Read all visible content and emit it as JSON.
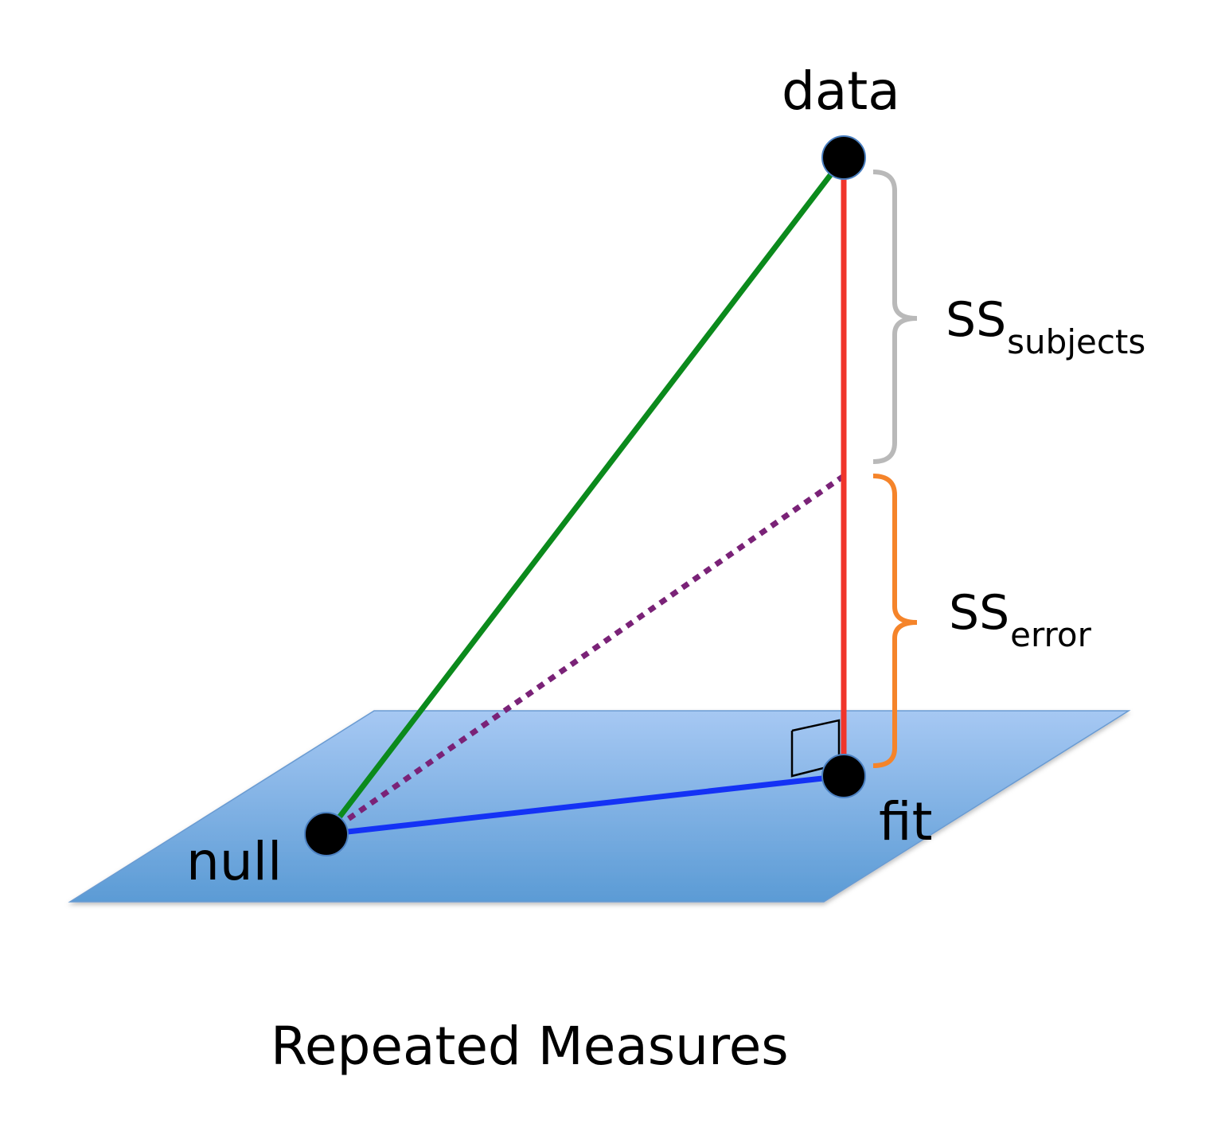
{
  "points": {
    "data": "data",
    "null": "null",
    "fit": "fit"
  },
  "ss_subjects": {
    "main": "SS",
    "sub": "subjects"
  },
  "ss_error": {
    "main": "SS",
    "sub": "error"
  },
  "caption": "Repeated Measures",
  "colors": {
    "plane_fill_top": "#a6c8f3",
    "plane_fill_bottom": "#5b9bd5",
    "plane_stroke": "#6a9bd2",
    "green_line": "#0b8a1c",
    "red_line": "#f0352b",
    "blue_line": "#1432f5",
    "purple_dotted": "#7a2277",
    "gray_brace": "#b9b9b9",
    "orange_brace": "#f5842a",
    "point_fill": "#000000"
  }
}
